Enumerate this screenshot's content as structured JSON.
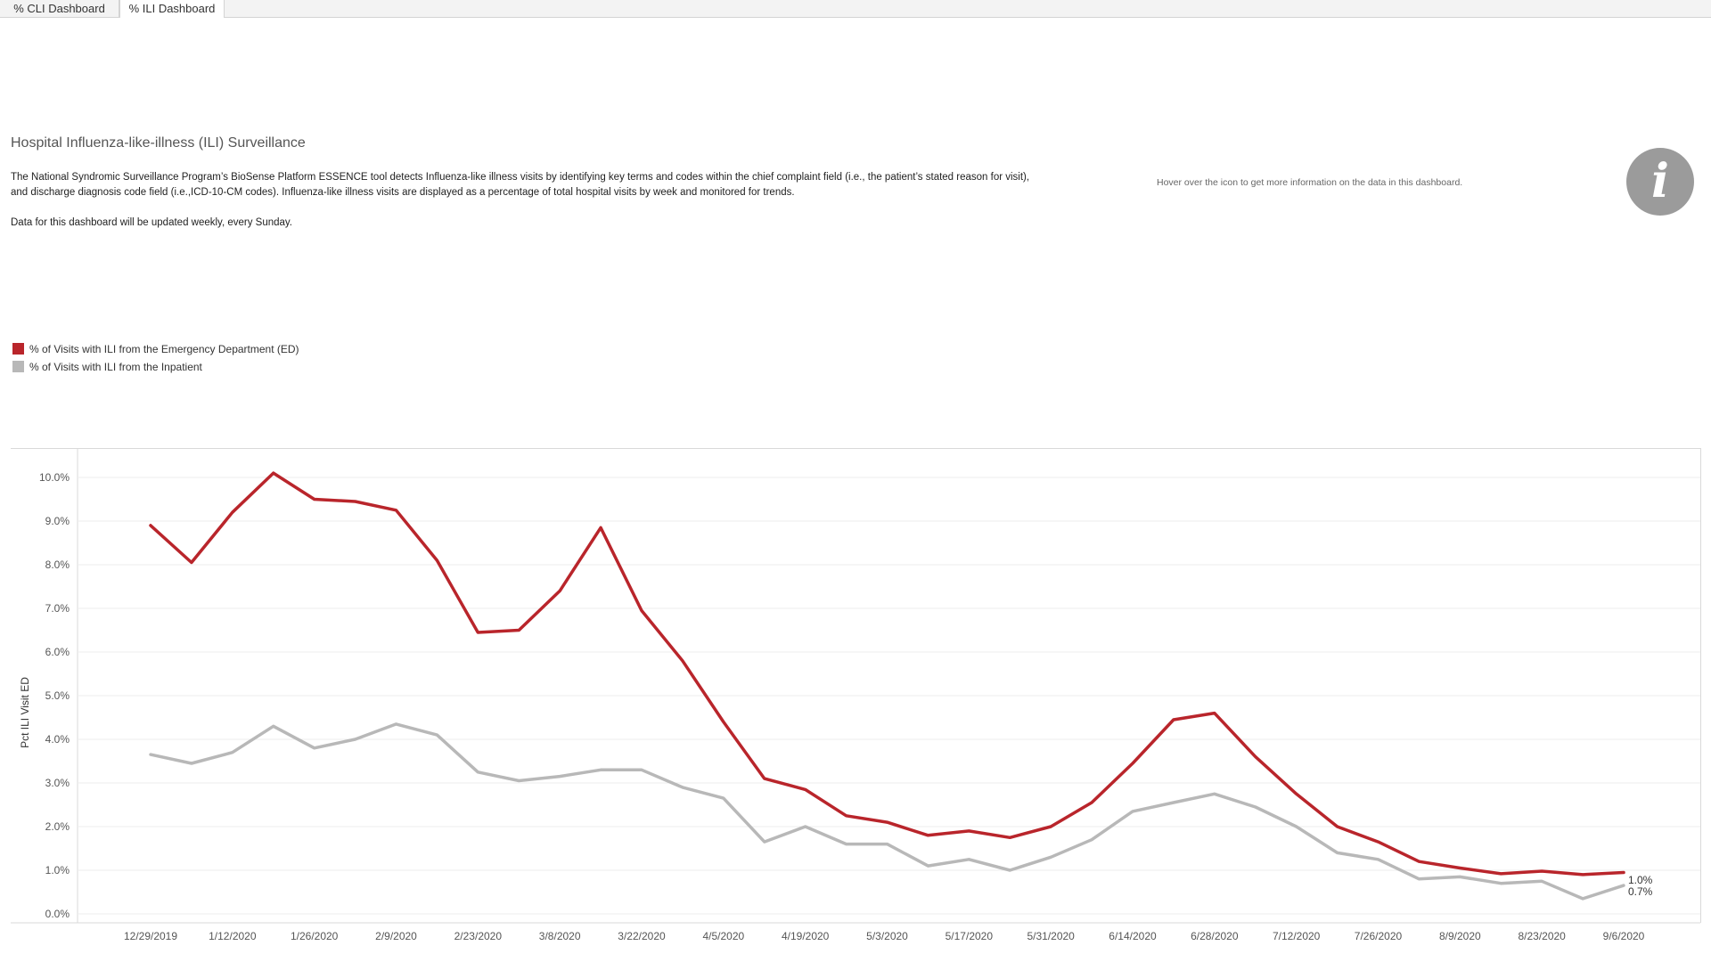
{
  "tabs": [
    {
      "label": "% CLI Dashboard",
      "active": false
    },
    {
      "label": "% ILI Dashboard",
      "active": true
    }
  ],
  "header": {
    "title": "Hospital Influenza-like-illness (ILI) Surveillance",
    "description_1": "The National Syndromic Surveillance Program’s BioSense Platform ESSENCE tool detects Influenza-like illness visits by identifying key terms and codes within the chief complaint field (i.e., the patient’s stated reason for visit),",
    "description_2": "and discharge diagnosis code field (i.e.,ICD-10-CM codes).  Influenza-like illness visits are displayed as a percentage of total hospital visits by week and monitored for trends.",
    "update_note": "Data for this dashboard will be updated weekly, every Sunday.",
    "hover_note": "Hover over the icon to get more information on the data in this dashboard.",
    "info_icon": "info-icon",
    "info_glyph": "i"
  },
  "colors": {
    "ed": "#b9252b",
    "inpatient": "#b8b8b8",
    "info": "#9b9b9b"
  },
  "chart_data": {
    "type": "line",
    "title": "",
    "xlabel": "",
    "ylabel": "Pct ILI Visit ED",
    "ylim": [
      0,
      10.3
    ],
    "y_ticks": [
      "0.0%",
      "1.0%",
      "2.0%",
      "3.0%",
      "4.0%",
      "5.0%",
      "6.0%",
      "7.0%",
      "8.0%",
      "9.0%",
      "10.0%"
    ],
    "x_tick_labels": [
      "12/29/2019",
      "1/12/2020",
      "1/26/2020",
      "2/9/2020",
      "2/23/2020",
      "3/8/2020",
      "3/22/2020",
      "4/5/2020",
      "4/19/2020",
      "5/3/2020",
      "5/17/2020",
      "5/31/2020",
      "6/14/2020",
      "6/28/2020",
      "7/12/2020",
      "7/26/2020",
      "8/9/2020",
      "8/23/2020",
      "9/6/2020"
    ],
    "legend_position": "top-left",
    "grid": true,
    "x": [
      "12/29/2019",
      "1/5/2020",
      "1/12/2020",
      "1/19/2020",
      "1/26/2020",
      "2/2/2020",
      "2/9/2020",
      "2/16/2020",
      "2/23/2020",
      "3/1/2020",
      "3/8/2020",
      "3/15/2020",
      "3/22/2020",
      "3/29/2020",
      "4/5/2020",
      "4/12/2020",
      "4/19/2020",
      "4/26/2020",
      "5/3/2020",
      "5/10/2020",
      "5/17/2020",
      "5/24/2020",
      "5/31/2020",
      "6/7/2020",
      "6/14/2020",
      "6/21/2020",
      "6/28/2020",
      "7/5/2020",
      "7/12/2020",
      "7/19/2020",
      "7/26/2020",
      "8/2/2020",
      "8/9/2020",
      "8/16/2020",
      "8/23/2020",
      "8/30/2020",
      "9/6/2020"
    ],
    "series": [
      {
        "name": "% of Visits with ILI from the Emergency Department (ED)",
        "values": [
          8.9,
          8.05,
          9.2,
          10.1,
          9.5,
          9.45,
          9.25,
          8.1,
          6.45,
          6.5,
          7.4,
          8.85,
          6.95,
          5.8,
          4.4,
          3.1,
          2.85,
          2.25,
          2.1,
          1.8,
          1.9,
          1.75,
          2.0,
          2.55,
          3.45,
          4.45,
          4.6,
          3.6,
          2.75,
          2.0,
          1.65,
          1.2,
          1.05,
          0.92,
          0.98,
          0.9,
          0.95
        ],
        "end_label": "1.0%"
      },
      {
        "name": "% of Visits with ILI from the Inpatient",
        "values": [
          3.65,
          3.45,
          3.7,
          4.3,
          3.8,
          4.0,
          4.35,
          4.1,
          3.25,
          3.05,
          3.15,
          3.3,
          3.3,
          2.9,
          2.65,
          1.65,
          2.0,
          1.6,
          1.6,
          1.1,
          1.25,
          1.0,
          1.3,
          1.7,
          2.35,
          2.55,
          2.75,
          2.45,
          2.0,
          1.4,
          1.25,
          0.8,
          0.85,
          0.7,
          0.75,
          0.35,
          0.65
        ],
        "end_label": "0.7%"
      }
    ]
  }
}
